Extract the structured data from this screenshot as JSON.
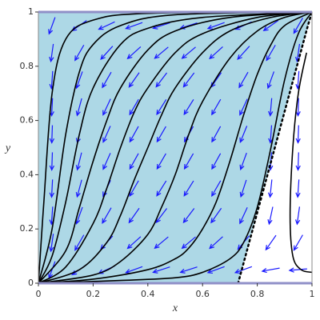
{
  "chart_data": {
    "type": "phase",
    "xlabel": "x",
    "ylabel": "y",
    "xlim": [
      0,
      1
    ],
    "ylim": [
      0,
      1
    ],
    "xticks": [
      0,
      0.2,
      0.4,
      0.6,
      0.8,
      1
    ],
    "yticks": [
      0,
      0.2,
      0.4,
      0.6,
      0.8,
      1
    ],
    "region_color": "#add8e6",
    "arrow_color": "#1a1aff",
    "curve_color": "#000000",
    "boundary": {
      "x": [
        0.73,
        0.985,
        1
      ],
      "y": [
        0,
        0.95,
        1
      ]
    },
    "field": {
      "x": [
        0.05,
        0.15,
        0.25,
        0.35,
        0.45,
        0.55,
        0.65,
        0.75,
        0.85,
        0.95
      ],
      "y": [
        0.95,
        0.85,
        0.75,
        0.65,
        0.55,
        0.45,
        0.35,
        0.25,
        0.15,
        0.05
      ],
      "angle": [
        [
          250,
          215,
          205,
          200,
          198,
          198,
          200,
          205,
          215,
          240
        ],
        [
          262,
          240,
          228,
          222,
          220,
          220,
          222,
          228,
          240,
          262
        ],
        [
          266,
          250,
          240,
          235,
          233,
          233,
          235,
          240,
          250,
          266
        ],
        [
          267,
          255,
          245,
          240,
          238,
          238,
          240,
          245,
          265,
          268
        ],
        [
          268,
          256,
          246,
          241,
          240,
          240,
          241,
          248,
          266,
          268
        ],
        [
          268,
          256,
          246,
          241,
          240,
          240,
          241,
          250,
          266,
          268
        ],
        [
          267,
          255,
          245,
          240,
          238,
          238,
          240,
          252,
          264,
          266
        ],
        [
          266,
          250,
          240,
          235,
          233,
          233,
          235,
          245,
          258,
          262
        ],
        [
          262,
          240,
          228,
          222,
          220,
          220,
          222,
          230,
          235,
          240
        ],
        [
          250,
          215,
          205,
          200,
          198,
          198,
          200,
          200,
          190,
          185
        ]
      ]
    },
    "curves": [
      {
        "x": [
          0,
          0.02,
          0.05,
          0.1,
          0.2,
          0.4,
          1
        ],
        "y": [
          0,
          0.3,
          0.7,
          0.9,
          0.97,
          0.995,
          1
        ]
      },
      {
        "x": [
          0,
          0.05,
          0.1,
          0.15,
          0.2,
          0.3,
          0.5,
          1
        ],
        "y": [
          0,
          0.2,
          0.55,
          0.78,
          0.88,
          0.95,
          0.99,
          1
        ]
      },
      {
        "x": [
          0,
          0.05,
          0.1,
          0.15,
          0.2,
          0.3,
          0.4,
          0.6,
          1
        ],
        "y": [
          0,
          0.1,
          0.3,
          0.55,
          0.72,
          0.88,
          0.94,
          0.98,
          1
        ]
      },
      {
        "x": [
          0,
          0.1,
          0.15,
          0.2,
          0.25,
          0.3,
          0.4,
          0.5,
          0.7,
          1
        ],
        "y": [
          0,
          0.12,
          0.28,
          0.45,
          0.6,
          0.72,
          0.86,
          0.93,
          0.98,
          1
        ]
      },
      {
        "x": [
          0,
          0.1,
          0.2,
          0.25,
          0.3,
          0.35,
          0.4,
          0.5,
          0.6,
          0.8,
          1
        ],
        "y": [
          0,
          0.06,
          0.22,
          0.35,
          0.5,
          0.63,
          0.72,
          0.85,
          0.92,
          0.98,
          1
        ]
      },
      {
        "x": [
          0,
          0.15,
          0.25,
          0.3,
          0.35,
          0.4,
          0.45,
          0.5,
          0.6,
          0.7,
          0.85,
          1
        ],
        "y": [
          0,
          0.05,
          0.15,
          0.25,
          0.38,
          0.5,
          0.62,
          0.72,
          0.85,
          0.93,
          0.98,
          1
        ]
      },
      {
        "x": [
          0,
          0.2,
          0.3,
          0.4,
          0.45,
          0.5,
          0.55,
          0.6,
          0.7,
          0.8,
          0.9,
          1
        ],
        "y": [
          0,
          0.03,
          0.08,
          0.18,
          0.28,
          0.4,
          0.55,
          0.67,
          0.83,
          0.93,
          0.98,
          1
        ]
      },
      {
        "x": [
          0,
          0.2,
          0.4,
          0.5,
          0.55,
          0.6,
          0.65,
          0.7,
          0.75,
          0.8,
          0.85,
          0.9,
          1
        ],
        "y": [
          0,
          0.015,
          0.05,
          0.09,
          0.13,
          0.2,
          0.3,
          0.45,
          0.62,
          0.77,
          0.88,
          0.95,
          1
        ]
      },
      {
        "x": [
          0,
          0.3,
          0.5,
          0.6,
          0.7,
          0.75,
          0.8,
          0.85,
          0.9,
          0.95,
          1
        ],
        "y": [
          0,
          0.01,
          0.02,
          0.04,
          0.09,
          0.15,
          0.28,
          0.5,
          0.75,
          0.92,
          1
        ]
      },
      {
        "x": [
          0.98,
          0.95,
          0.93,
          0.92,
          0.93,
          0.96,
          1
        ],
        "y": [
          0.85,
          0.7,
          0.5,
          0.25,
          0.1,
          0.05,
          0.04
        ]
      }
    ]
  }
}
